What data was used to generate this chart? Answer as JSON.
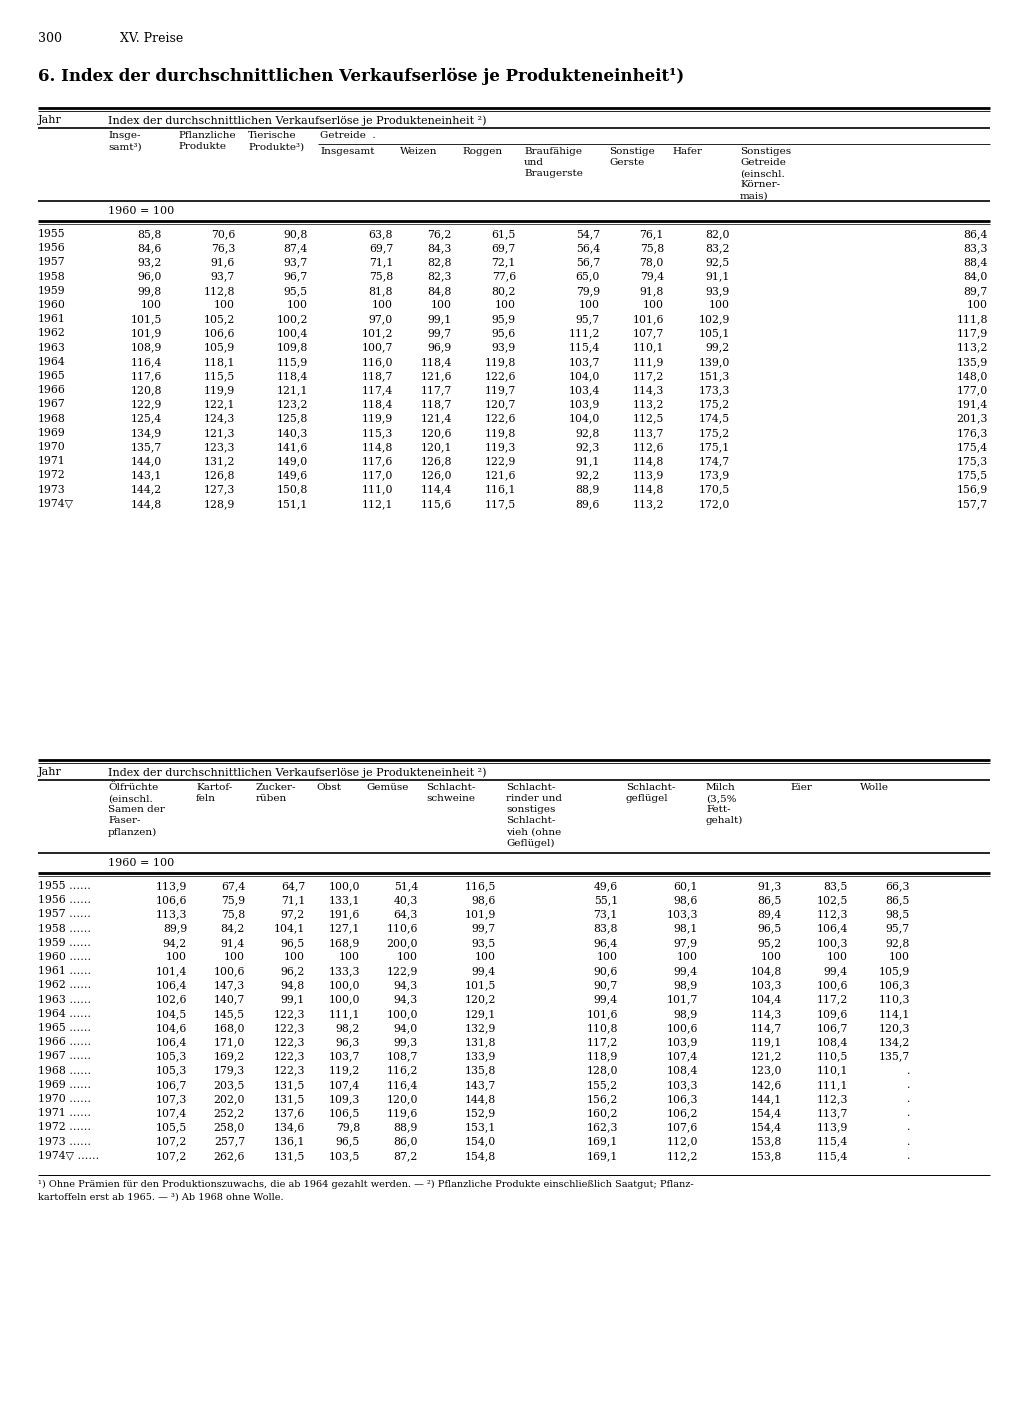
{
  "page_num": "300",
  "chapter": "XV. Preise",
  "title": "6. Index der durchschnittlichen Verkaufserlöse je Produkteneinheit¹)",
  "table1_header": "Index der durchschnittlichen Verkaufserlöse je Produkteneinheit ²)",
  "table2_header": "Index der durchschnittlichen Verkaufserlöse je Produkteneinheit ²)",
  "note": "1960 = 100",
  "t1_rows": [
    [
      "1955",
      "85,8",
      "70,6",
      "90,8",
      "63,8",
      "76,2",
      "61,5",
      "54,7",
      "76,1",
      "82,0",
      "86,4"
    ],
    [
      "1956",
      "84,6",
      "76,3",
      "87,4",
      "69,7",
      "84,3",
      "69,7",
      "56,4",
      "75,8",
      "83,2",
      "83,3"
    ],
    [
      "1957",
      "93,2",
      "91,6",
      "93,7",
      "71,1",
      "82,8",
      "72,1",
      "56,7",
      "78,0",
      "92,5",
      "88,4"
    ],
    [
      "1958",
      "96,0",
      "93,7",
      "96,7",
      "75,8",
      "82,3",
      "77,6",
      "65,0",
      "79,4",
      "91,1",
      "84,0"
    ],
    [
      "1959",
      "99,8",
      "112,8",
      "95,5",
      "81,8",
      "84,8",
      "80,2",
      "79,9",
      "91,8",
      "93,9",
      "89,7"
    ],
    [
      "1960",
      "100",
      "100",
      "100",
      "100",
      "100",
      "100",
      "100",
      "100",
      "100",
      "100"
    ],
    [
      "1961",
      "101,5",
      "105,2",
      "100,2",
      "97,0",
      "99,1",
      "95,9",
      "95,7",
      "101,6",
      "102,9",
      "111,8"
    ],
    [
      "1962",
      "101,9",
      "106,6",
      "100,4",
      "101,2",
      "99,7",
      "95,6",
      "111,2",
      "107,7",
      "105,1",
      "117,9"
    ],
    [
      "1963",
      "108,9",
      "105,9",
      "109,8",
      "100,7",
      "96,9",
      "93,9",
      "115,4",
      "110,1",
      "99,2",
      "113,2"
    ],
    [
      "1964",
      "116,4",
      "118,1",
      "115,9",
      "116,0",
      "118,4",
      "119,8",
      "103,7",
      "111,9",
      "139,0",
      "135,9"
    ],
    [
      "1965",
      "117,6",
      "115,5",
      "118,4",
      "118,7",
      "121,6",
      "122,6",
      "104,0",
      "117,2",
      "151,3",
      "148,0"
    ],
    [
      "1966",
      "120,8",
      "119,9",
      "121,1",
      "117,4",
      "117,7",
      "119,7",
      "103,4",
      "114,3",
      "173,3",
      "177,0"
    ],
    [
      "1967",
      "122,9",
      "122,1",
      "123,2",
      "118,4",
      "118,7",
      "120,7",
      "103,9",
      "113,2",
      "175,2",
      "191,4"
    ],
    [
      "1968",
      "125,4",
      "124,3",
      "125,8",
      "119,9",
      "121,4",
      "122,6",
      "104,0",
      "112,5",
      "174,5",
      "201,3"
    ],
    [
      "1969",
      "134,9",
      "121,3",
      "140,3",
      "115,3",
      "120,6",
      "119,8",
      "92,8",
      "113,7",
      "175,2",
      "176,3"
    ],
    [
      "1970",
      "135,7",
      "123,3",
      "141,6",
      "114,8",
      "120,1",
      "119,3",
      "92,3",
      "112,6",
      "175,1",
      "175,4"
    ],
    [
      "1971",
      "144,0",
      "131,2",
      "149,0",
      "117,6",
      "126,8",
      "122,9",
      "91,1",
      "114,8",
      "174,7",
      "175,3"
    ],
    [
      "1972",
      "143,1",
      "126,8",
      "149,6",
      "117,0",
      "126,0",
      "121,6",
      "92,2",
      "113,9",
      "173,9",
      "175,5"
    ],
    [
      "1973",
      "144,2",
      "127,3",
      "150,8",
      "111,0",
      "114,4",
      "116,1",
      "88,9",
      "114,8",
      "170,5",
      "156,9"
    ],
    [
      "1974▽",
      "144,8",
      "128,9",
      "151,1",
      "112,1",
      "115,6",
      "117,5",
      "89,6",
      "113,2",
      "172,0",
      "157,7"
    ]
  ],
  "t2_rows": [
    [
      "1955 ……",
      "113,9",
      "67,4",
      "64,7",
      "100,0",
      "51,4",
      "116,5",
      "49,6",
      "60,1",
      "91,3",
      "83,5",
      "66,3"
    ],
    [
      "1956 ……",
      "106,6",
      "75,9",
      "71,1",
      "133,1",
      "40,3",
      "98,6",
      "55,1",
      "98,6",
      "86,5",
      "102,5",
      "86,5"
    ],
    [
      "1957 ……",
      "113,3",
      "75,8",
      "97,2",
      "191,6",
      "64,3",
      "101,9",
      "73,1",
      "103,3",
      "89,4",
      "112,3",
      "98,5"
    ],
    [
      "1958 ……",
      "89,9",
      "84,2",
      "104,1",
      "127,1",
      "110,6",
      "99,7",
      "83,8",
      "98,1",
      "96,5",
      "106,4",
      "95,7"
    ],
    [
      "1959 ……",
      "94,2",
      "91,4",
      "96,5",
      "168,9",
      "200,0",
      "93,5",
      "96,4",
      "97,9",
      "95,2",
      "100,3",
      "92,8"
    ],
    [
      "1960 ……",
      "100",
      "100",
      "100",
      "100",
      "100",
      "100",
      "100",
      "100",
      "100",
      "100",
      "100"
    ],
    [
      "1961 ……",
      "101,4",
      "100,6",
      "96,2",
      "133,3",
      "122,9",
      "99,4",
      "90,6",
      "99,4",
      "104,8",
      "99,4",
      "105,9"
    ],
    [
      "1962 ……",
      "106,4",
      "147,3",
      "94,8",
      "100,0",
      "94,3",
      "101,5",
      "90,7",
      "98,9",
      "103,3",
      "100,6",
      "106,3"
    ],
    [
      "1963 ……",
      "102,6",
      "140,7",
      "99,1",
      "100,0",
      "94,3",
      "120,2",
      "99,4",
      "101,7",
      "104,4",
      "117,2",
      "110,3"
    ],
    [
      "1964 ……",
      "104,5",
      "145,5",
      "122,3",
      "111,1",
      "100,0",
      "129,1",
      "101,6",
      "98,9",
      "114,3",
      "109,6",
      "114,1"
    ],
    [
      "1965 ……",
      "104,6",
      "168,0",
      "122,3",
      "98,2",
      "94,0",
      "132,9",
      "110,8",
      "100,6",
      "114,7",
      "106,7",
      "120,3"
    ],
    [
      "1966 ……",
      "106,4",
      "171,0",
      "122,3",
      "96,3",
      "99,3",
      "131,8",
      "117,2",
      "103,9",
      "119,1",
      "108,4",
      "134,2"
    ],
    [
      "1967 ……",
      "105,3",
      "169,2",
      "122,3",
      "103,7",
      "108,7",
      "133,9",
      "118,9",
      "107,4",
      "121,2",
      "110,5",
      "135,7"
    ],
    [
      "1968 ……",
      "105,3",
      "179,3",
      "122,3",
      "119,2",
      "116,2",
      "135,8",
      "128,0",
      "108,4",
      "123,0",
      "110,1",
      "."
    ],
    [
      "1969 ……",
      "106,7",
      "203,5",
      "131,5",
      "107,4",
      "116,4",
      "143,7",
      "155,2",
      "103,3",
      "142,6",
      "111,1",
      "."
    ],
    [
      "1970 ……",
      "107,3",
      "202,0",
      "131,5",
      "109,3",
      "120,0",
      "144,8",
      "156,2",
      "106,3",
      "144,1",
      "112,3",
      "."
    ],
    [
      "1971 ……",
      "107,4",
      "252,2",
      "137,6",
      "106,5",
      "119,6",
      "152,9",
      "160,2",
      "106,2",
      "154,4",
      "113,7",
      "."
    ],
    [
      "1972 ……",
      "105,5",
      "258,0",
      "134,6",
      "79,8",
      "88,9",
      "153,1",
      "162,3",
      "107,6",
      "154,4",
      "113,9",
      "."
    ],
    [
      "1973 ……",
      "107,2",
      "257,7",
      "136,1",
      "96,5",
      "86,0",
      "154,0",
      "169,1",
      "112,0",
      "153,8",
      "115,4",
      "."
    ],
    [
      "1974▽ ……",
      "107,2",
      "262,6",
      "131,5",
      "103,5",
      "87,2",
      "154,8",
      "169,1",
      "112,2",
      "153,8",
      "115,4",
      "."
    ]
  ],
  "footnotes": [
    "¹) Ohne Prämien für den Produktionszuwachs, die ab 1964 gezahlt werden. — ²) Pflanzliche Produkte einschließlich Saatgut; Pflanz-",
    "kartoffeln erst ab 1965. — ³) Ab 1968 ohne Wolle."
  ]
}
